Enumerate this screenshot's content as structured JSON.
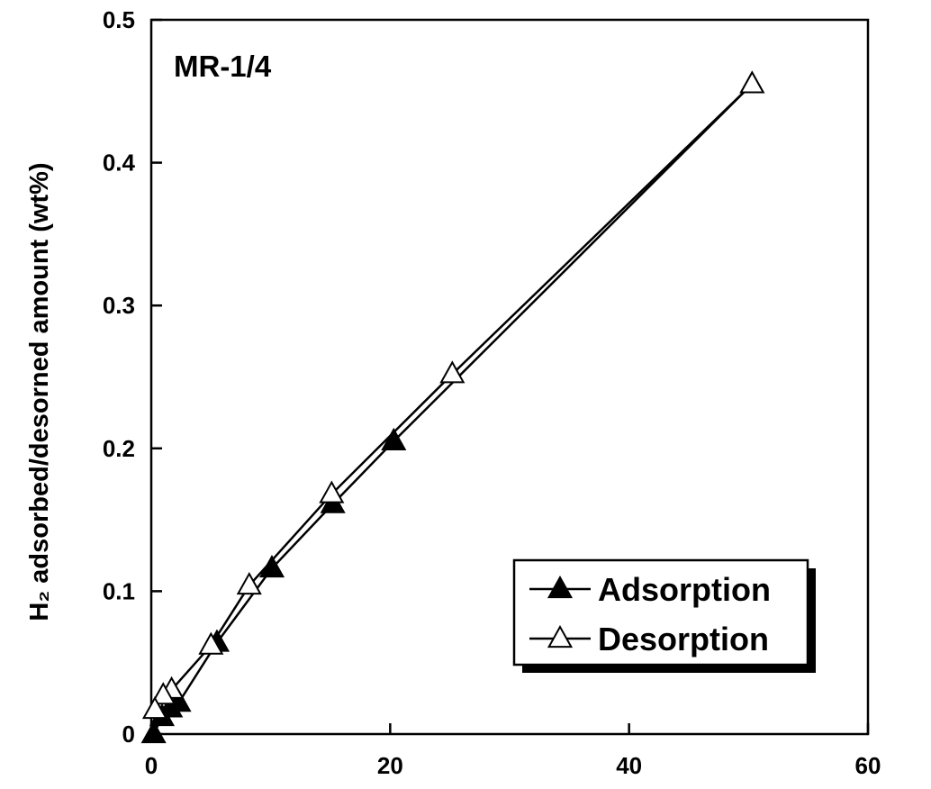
{
  "chart_data": {
    "type": "line",
    "xlabel": "",
    "ylabel": "H₂ adsorbed/desorned amount (wt%)",
    "annotation": "MR-1/4",
    "xlim": [
      0,
      60
    ],
    "ylim": [
      0,
      0.5
    ],
    "xticks": [
      "0",
      "20",
      "40",
      "60"
    ],
    "yticks": [
      "0",
      "0.1",
      "0.2",
      "0.3",
      "0.4",
      "0.5"
    ],
    "grid": false,
    "legend_position": "bottom-right",
    "series": [
      {
        "name": "Adsorption",
        "marker": "filled-triangle",
        "x": [
          0.2,
          0.9,
          1.6,
          2.3,
          5.5,
          10.1,
          15.2,
          20.3,
          50.3
        ],
        "y": [
          0.0,
          0.012,
          0.018,
          0.022,
          0.064,
          0.116,
          0.161,
          0.205,
          0.455
        ]
      },
      {
        "name": "Desorption",
        "marker": "open-triangle",
        "x": [
          50.3,
          25.2,
          15.1,
          8.2,
          5.0,
          1.7,
          1.0,
          0.3
        ],
        "y": [
          0.455,
          0.252,
          0.168,
          0.104,
          0.062,
          0.031,
          0.027,
          0.017
        ]
      }
    ]
  }
}
